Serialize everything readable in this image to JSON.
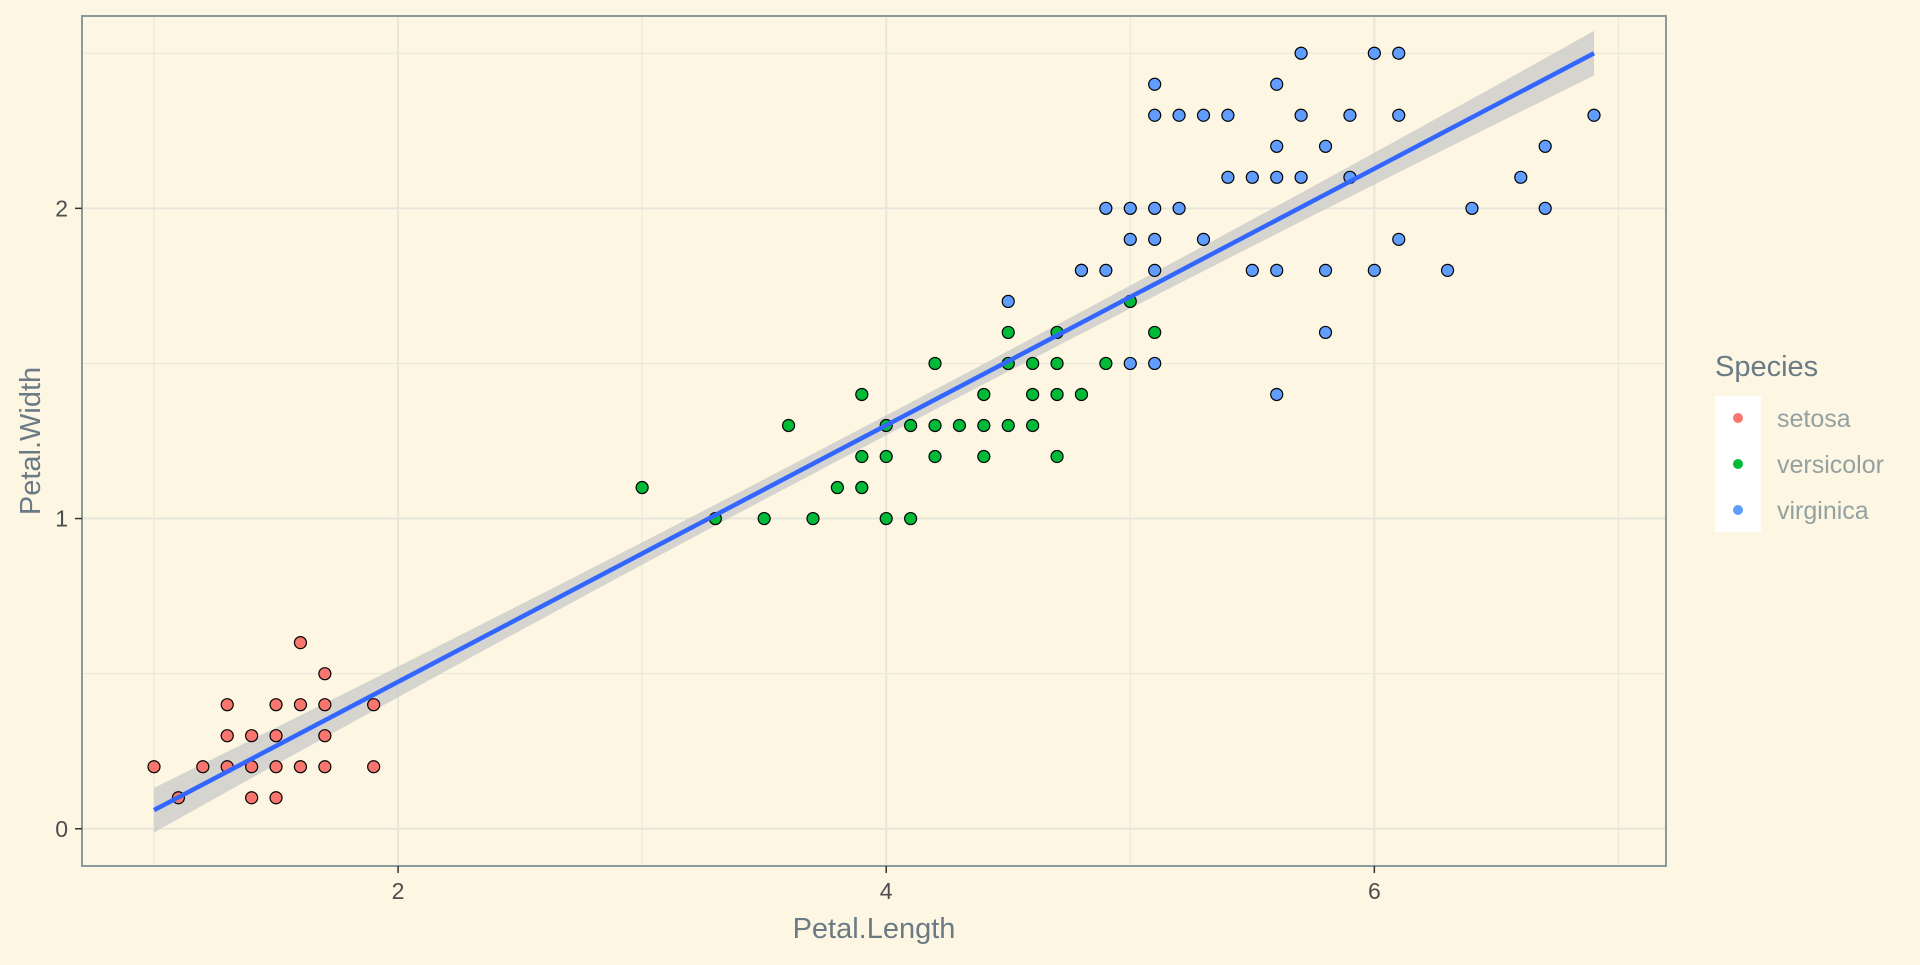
{
  "chart_data": {
    "type": "scatter",
    "title": "",
    "xlabel": "Petal.Length",
    "ylabel": "Petal.Width",
    "xlim": [
      0.705,
      7.195
    ],
    "ylim": [
      -0.12,
      2.62
    ],
    "x_ticks": [
      2,
      4,
      6
    ],
    "y_ticks": [
      0,
      1,
      2
    ],
    "grid": true,
    "legend": {
      "title": "Species",
      "position": "right",
      "entries": [
        "setosa",
        "versicolor",
        "virginica"
      ]
    },
    "colors": {
      "background": "#fdf6e3",
      "panel_border": "#8a9a9c",
      "grid": "#e8e6da",
      "setosa": "#F8766D",
      "versicolor": "#00BA38",
      "virginica": "#619CFF",
      "point_outline": "#000000",
      "fit_line": "#3366FF",
      "confidence_band": "#c8c8c8"
    },
    "trend_line": {
      "method": "lm",
      "from": [
        1.0,
        0.06
      ],
      "to": [
        6.9,
        2.5
      ],
      "se_band": true
    },
    "series": [
      {
        "name": "setosa",
        "points": [
          [
            1.0,
            0.2
          ],
          [
            1.1,
            0.1
          ],
          [
            1.2,
            0.2
          ],
          [
            1.3,
            0.2
          ],
          [
            1.3,
            0.3
          ],
          [
            1.3,
            0.4
          ],
          [
            1.4,
            0.1
          ],
          [
            1.4,
            0.2
          ],
          [
            1.4,
            0.3
          ],
          [
            1.5,
            0.1
          ],
          [
            1.5,
            0.2
          ],
          [
            1.5,
            0.3
          ],
          [
            1.5,
            0.4
          ],
          [
            1.6,
            0.2
          ],
          [
            1.6,
            0.4
          ],
          [
            1.6,
            0.6
          ],
          [
            1.7,
            0.2
          ],
          [
            1.7,
            0.3
          ],
          [
            1.7,
            0.4
          ],
          [
            1.7,
            0.5
          ],
          [
            1.9,
            0.2
          ],
          [
            1.9,
            0.4
          ]
        ]
      },
      {
        "name": "versicolor",
        "points": [
          [
            3.0,
            1.1
          ],
          [
            3.3,
            1.0
          ],
          [
            3.5,
            1.0
          ],
          [
            3.6,
            1.3
          ],
          [
            3.7,
            1.0
          ],
          [
            3.8,
            1.1
          ],
          [
            3.9,
            1.1
          ],
          [
            3.9,
            1.2
          ],
          [
            3.9,
            1.4
          ],
          [
            4.0,
            1.0
          ],
          [
            4.0,
            1.2
          ],
          [
            4.0,
            1.3
          ],
          [
            4.1,
            1.0
          ],
          [
            4.1,
            1.3
          ],
          [
            4.2,
            1.2
          ],
          [
            4.2,
            1.3
          ],
          [
            4.2,
            1.5
          ],
          [
            4.3,
            1.3
          ],
          [
            4.4,
            1.2
          ],
          [
            4.4,
            1.3
          ],
          [
            4.4,
            1.4
          ],
          [
            4.5,
            1.3
          ],
          [
            4.5,
            1.5
          ],
          [
            4.5,
            1.6
          ],
          [
            4.6,
            1.3
          ],
          [
            4.6,
            1.4
          ],
          [
            4.6,
            1.5
          ],
          [
            4.7,
            1.2
          ],
          [
            4.7,
            1.4
          ],
          [
            4.7,
            1.5
          ],
          [
            4.7,
            1.6
          ],
          [
            4.8,
            1.4
          ],
          [
            4.8,
            1.8
          ],
          [
            4.9,
            1.5
          ],
          [
            5.0,
            1.7
          ],
          [
            5.1,
            1.6
          ]
        ]
      },
      {
        "name": "virginica",
        "points": [
          [
            4.5,
            1.7
          ],
          [
            4.8,
            1.8
          ],
          [
            4.9,
            1.8
          ],
          [
            4.9,
            2.0
          ],
          [
            5.0,
            1.5
          ],
          [
            5.0,
            1.9
          ],
          [
            5.0,
            2.0
          ],
          [
            5.1,
            1.5
          ],
          [
            5.1,
            1.8
          ],
          [
            5.1,
            1.9
          ],
          [
            5.1,
            2.0
          ],
          [
            5.1,
            2.3
          ],
          [
            5.1,
            2.4
          ],
          [
            5.2,
            2.0
          ],
          [
            5.2,
            2.3
          ],
          [
            5.3,
            1.9
          ],
          [
            5.3,
            2.3
          ],
          [
            5.4,
            2.1
          ],
          [
            5.4,
            2.3
          ],
          [
            5.5,
            1.8
          ],
          [
            5.5,
            2.1
          ],
          [
            5.6,
            1.4
          ],
          [
            5.6,
            1.8
          ],
          [
            5.6,
            2.1
          ],
          [
            5.6,
            2.2
          ],
          [
            5.6,
            2.4
          ],
          [
            5.7,
            2.1
          ],
          [
            5.7,
            2.3
          ],
          [
            5.7,
            2.5
          ],
          [
            5.8,
            1.6
          ],
          [
            5.8,
            1.8
          ],
          [
            5.8,
            2.2
          ],
          [
            5.9,
            2.1
          ],
          [
            5.9,
            2.3
          ],
          [
            6.0,
            1.8
          ],
          [
            6.0,
            2.5
          ],
          [
            6.1,
            1.9
          ],
          [
            6.1,
            2.3
          ],
          [
            6.1,
            2.5
          ],
          [
            6.3,
            1.8
          ],
          [
            6.4,
            2.0
          ],
          [
            6.6,
            2.1
          ],
          [
            6.7,
            2.0
          ],
          [
            6.7,
            2.2
          ],
          [
            6.9,
            2.3
          ]
        ]
      }
    ]
  }
}
